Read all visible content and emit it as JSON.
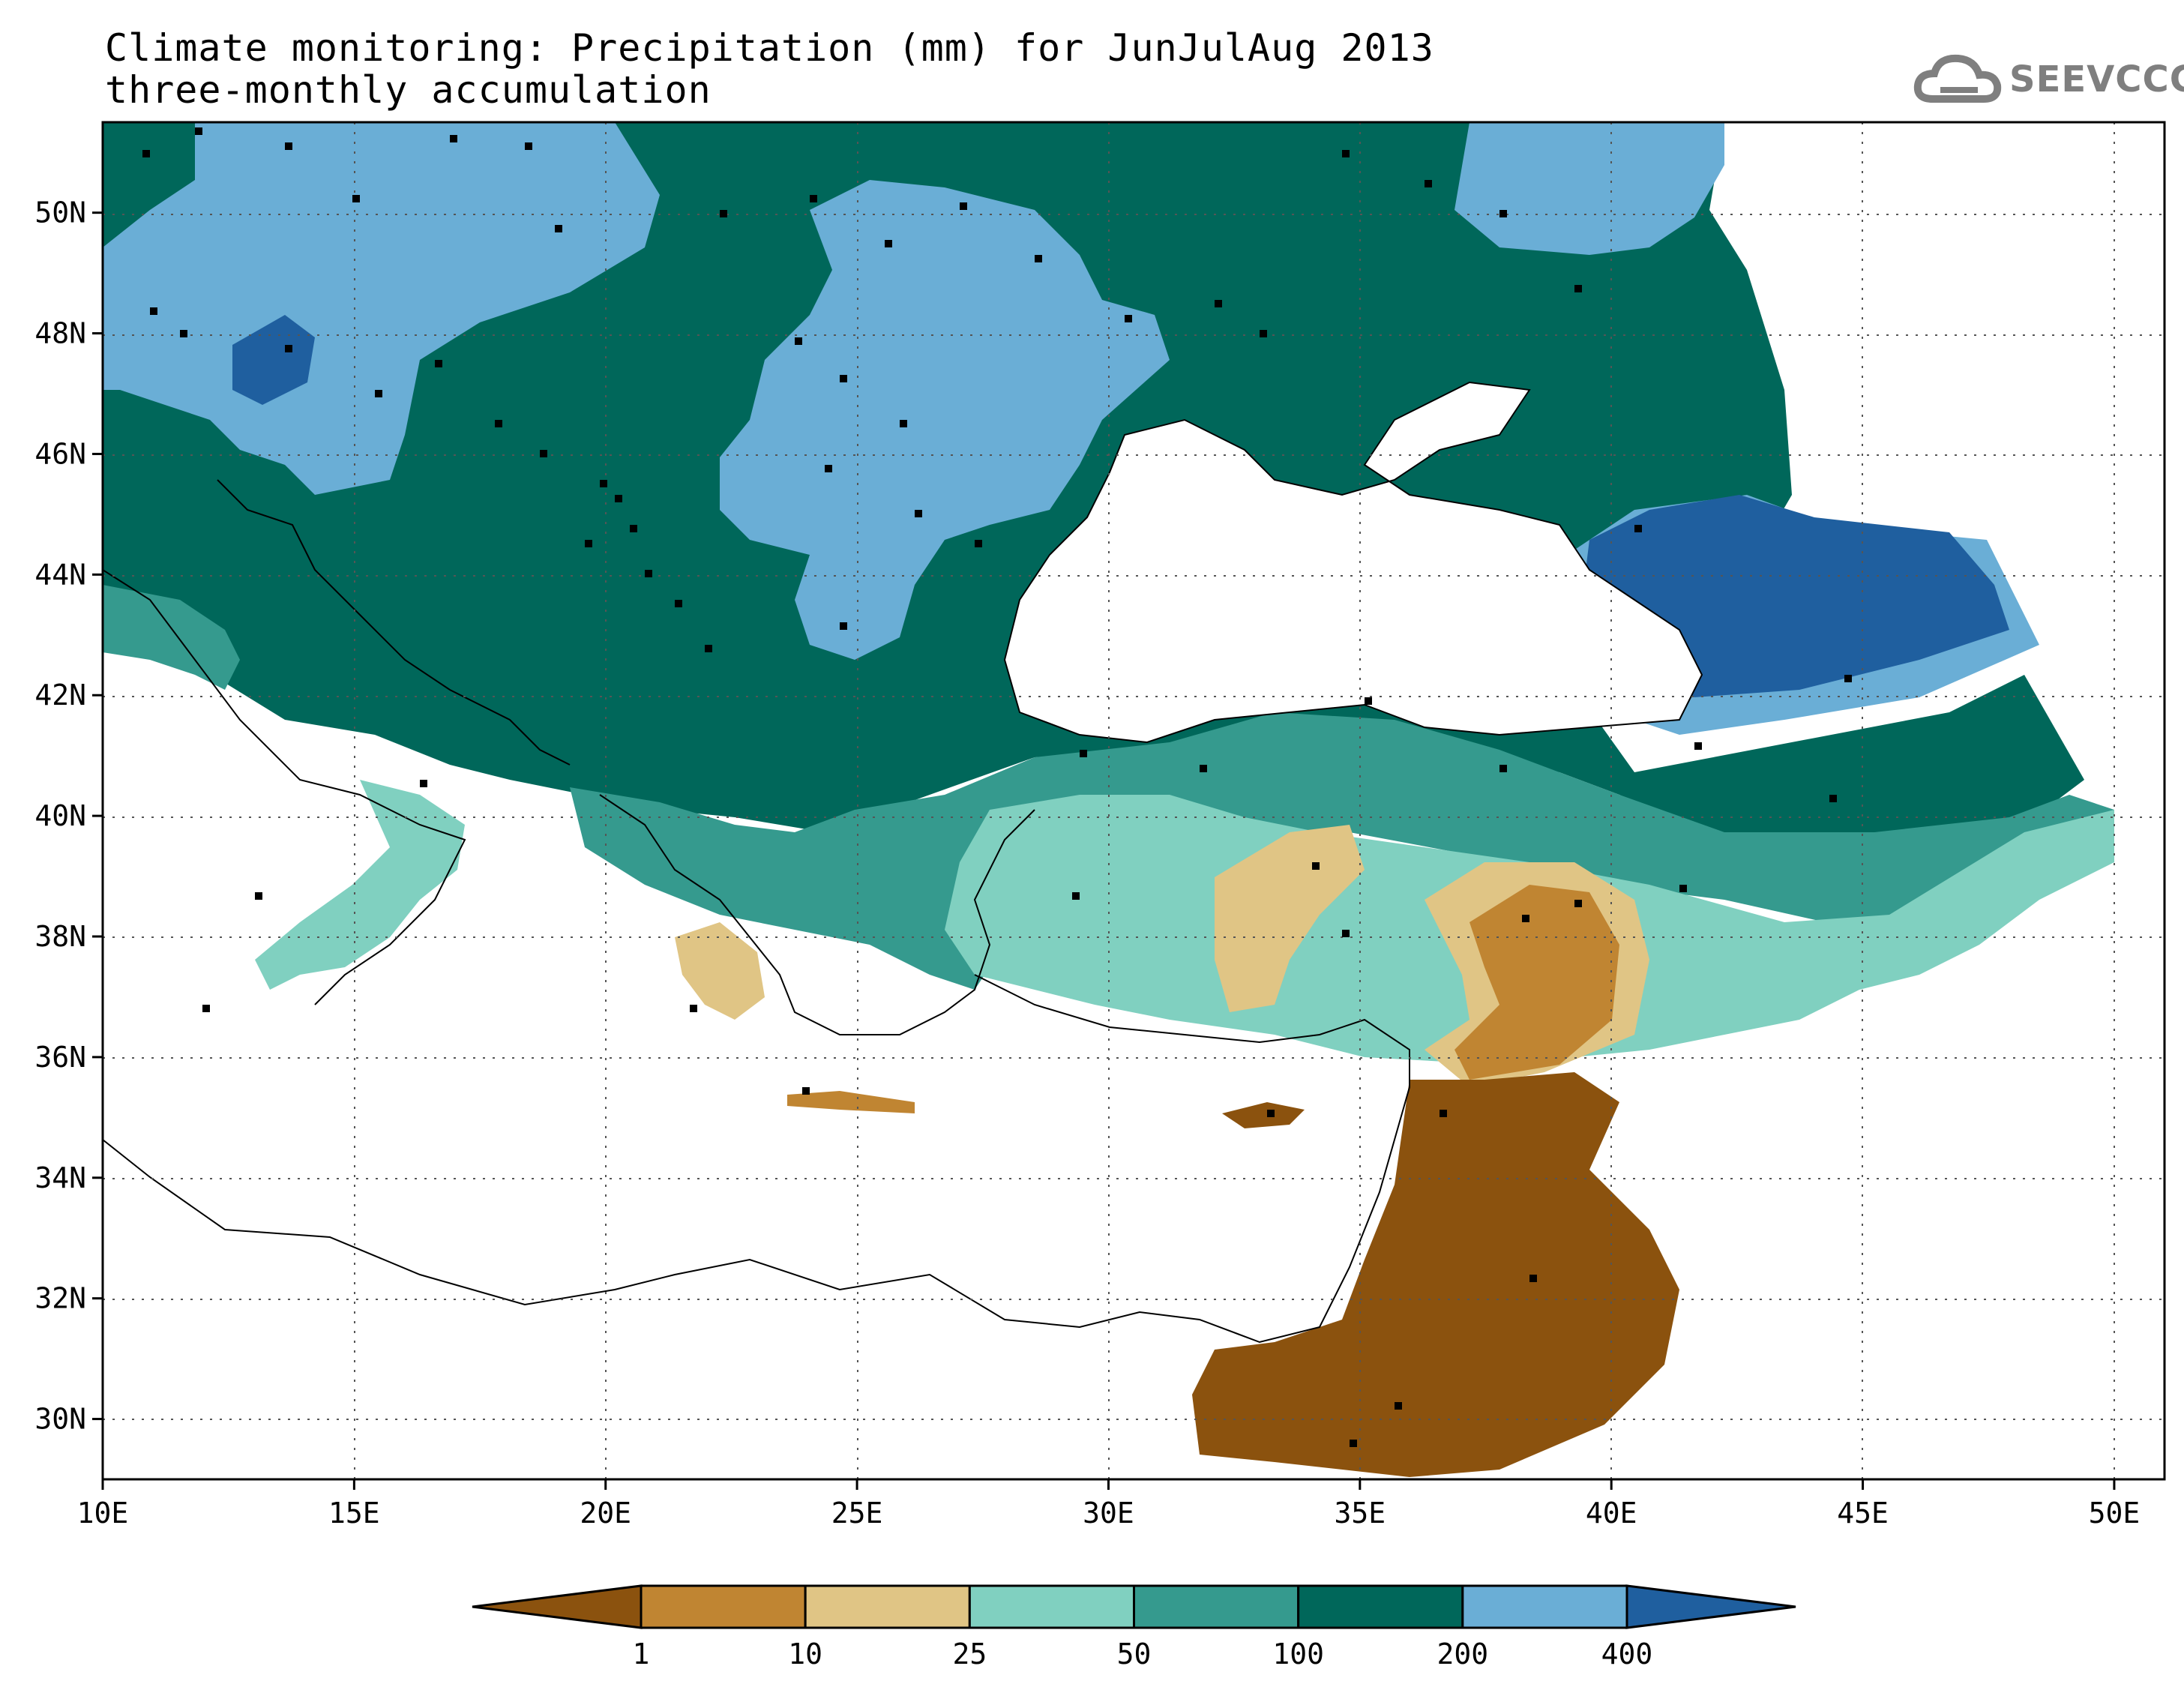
{
  "title": {
    "line1": "Climate monitoring: Precipitation (mm) for JunJulAug 2013",
    "line2": "three-monthly accumulation"
  },
  "logo": {
    "text": "SEEVCCC",
    "icon": "cloud-icon",
    "color": "#7f7f7f"
  },
  "map": {
    "lon_range": [
      10,
      51
    ],
    "lat_range": [
      29,
      51.5
    ],
    "lon_ticks": [
      "10E",
      "15E",
      "20E",
      "25E",
      "30E",
      "35E",
      "40E",
      "45E",
      "50E"
    ],
    "lat_ticks": [
      "30N",
      "32N",
      "34N",
      "36N",
      "38N",
      "40N",
      "42N",
      "44N",
      "46N",
      "48N",
      "50N"
    ],
    "grid": "dotted"
  },
  "colorbar": {
    "labels": [
      "1",
      "10",
      "25",
      "50",
      "100",
      "200",
      "400"
    ],
    "colors": [
      "#8b520e",
      "#c08532",
      "#e0c585",
      "#80d0c0",
      "#359a8e",
      "#00675a",
      "#6aaed6",
      "#1f5f9f"
    ]
  }
}
